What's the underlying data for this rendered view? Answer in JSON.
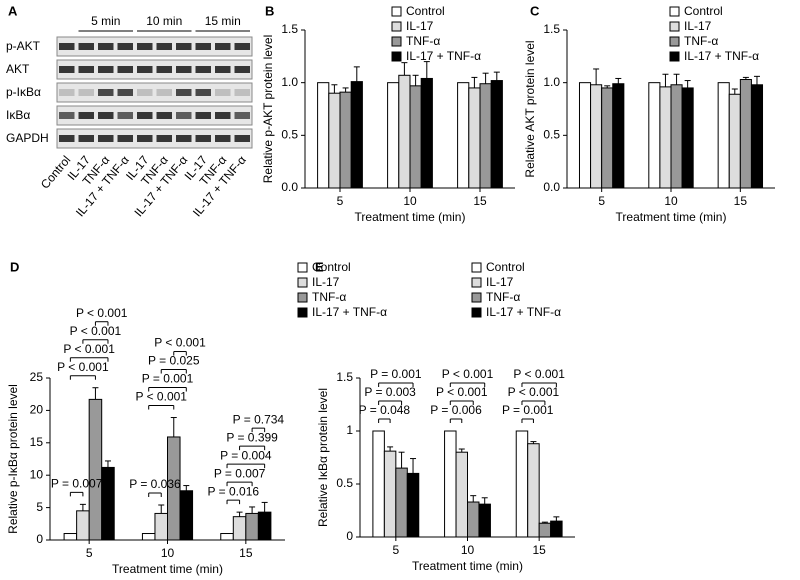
{
  "chart_data": [
    {
      "type": "blot",
      "label": "A",
      "times": [
        "5 min",
        "10 min",
        "15 min"
      ],
      "rows": [
        "p-AKT",
        "AKT",
        "p-IκBα",
        "IκBα",
        "GAPDH"
      ],
      "lanes": [
        "Control",
        "IL-17",
        "TNF-α",
        "IL-17 + TNF-α",
        "IL-17",
        "TNF-α",
        "IL-17 + TNF-α",
        "IL-17",
        "TNF-α",
        "IL-17 + TNF-α"
      ]
    },
    {
      "type": "bar",
      "label": "B",
      "y_label": "Relative p-AKT protein level",
      "x_label": "Treatment time (min)",
      "categories": [
        "5",
        "10",
        "15"
      ],
      "ylim": [
        0,
        1.5
      ],
      "yticks": [
        {
          "value": 0,
          "label": "0.0"
        },
        0.5,
        {
          "value": 1,
          "label": "1.0"
        },
        1.5
      ],
      "series": [
        {
          "name": "Control",
          "color": "#ffffff",
          "values": [
            1.0,
            1.0,
            1.0
          ]
        },
        {
          "name": "IL-17",
          "color": "#dddddd",
          "values": [
            0.9,
            1.07,
            0.95
          ],
          "errors": [
            0.08,
            0.12,
            0.1
          ]
        },
        {
          "name": "TNF-α",
          "color": "#999999",
          "values": [
            0.91,
            0.97,
            0.99
          ],
          "errors": [
            0.04,
            0.1,
            0.1
          ]
        },
        {
          "name": "IL-17 + TNF-α",
          "color": "#000000",
          "values": [
            1.01,
            1.04,
            1.02
          ],
          "errors": [
            0.14,
            0.16,
            0.08
          ]
        }
      ]
    },
    {
      "type": "bar",
      "label": "C",
      "y_label": "Relative AKT protein level",
      "x_label": "Treatment time (min)",
      "categories": [
        "5",
        "10",
        "15"
      ],
      "ylim": [
        0,
        1.5
      ],
      "yticks": [
        {
          "value": 0,
          "label": "0.0"
        },
        0.5,
        {
          "value": 1,
          "label": "1.0"
        },
        1.5
      ],
      "series": [
        {
          "name": "Control",
          "color": "#ffffff",
          "values": [
            1.0,
            1.0,
            1.0
          ]
        },
        {
          "name": "IL-17",
          "color": "#dddddd",
          "values": [
            0.98,
            0.96,
            0.89
          ],
          "errors": [
            0.15,
            0.12,
            0.05
          ]
        },
        {
          "name": "TNF-α",
          "color": "#999999",
          "values": [
            0.95,
            0.98,
            1.03
          ],
          "errors": [
            0.02,
            0.1,
            0.02
          ]
        },
        {
          "name": "IL-17 + TNF-α",
          "color": "#000000",
          "values": [
            0.99,
            0.95,
            0.98
          ],
          "errors": [
            0.05,
            0.07,
            0.08
          ]
        }
      ]
    },
    {
      "type": "bar",
      "label": "D",
      "y_label": "Relative p-IκBα protein level",
      "x_label": "Treatment time (min)",
      "categories": [
        "5",
        "10",
        "15"
      ],
      "ylim": [
        0,
        25
      ],
      "yticks": [
        0,
        5,
        10,
        15,
        20,
        25
      ],
      "series": [
        {
          "name": "Control",
          "color": "#ffffff",
          "values": [
            1,
            1,
            1
          ]
        },
        {
          "name": "IL-17",
          "color": "#dddddd",
          "values": [
            4.5,
            4.1,
            3.6
          ],
          "errors": [
            1,
            1.3,
            0.7
          ]
        },
        {
          "name": "TNF-α",
          "color": "#999999",
          "values": [
            21.7,
            15.9,
            4.1
          ],
          "errors": [
            1.8,
            3,
            1
          ]
        },
        {
          "name": "IL-17 + TNF-α",
          "color": "#000000",
          "values": [
            11.2,
            7.6,
            4.3
          ],
          "errors": [
            1,
            0.8,
            1.5
          ]
        }
      ],
      "annotations": [
        [
          "P = 0.007",
          "P < 0.001",
          "P < 0.001",
          "P < 0.001",
          "P < 0.001"
        ],
        [
          "P = 0.036",
          "P < 0.001",
          "P = 0.001",
          "P = 0.025",
          "P < 0.001"
        ],
        [
          "P = 0.016",
          "P = 0.007",
          "P = 0.004",
          "P = 0.399",
          "P = 0.734"
        ]
      ]
    },
    {
      "type": "bar",
      "label": "E",
      "y_label": "Relative IκBα protein level",
      "x_label": "Treatment time (min)",
      "categories": [
        "5",
        "10",
        "15"
      ],
      "ylim": [
        0,
        1.5
      ],
      "yticks": [
        0,
        0.5,
        1,
        1.5
      ],
      "series": [
        {
          "name": "Control",
          "color": "#ffffff",
          "values": [
            1,
            1,
            1
          ]
        },
        {
          "name": "IL-17",
          "color": "#dddddd",
          "values": [
            0.81,
            0.8,
            0.88
          ],
          "errors": [
            0.04,
            0.03,
            0.02
          ]
        },
        {
          "name": "TNF-α",
          "color": "#999999",
          "values": [
            0.65,
            0.33,
            0.13
          ],
          "errors": [
            0.15,
            0.06,
            0.01
          ]
        },
        {
          "name": "IL-17 + TNF-α",
          "color": "#000000",
          "values": [
            0.6,
            0.31,
            0.15
          ],
          "errors": [
            0.14,
            0.06,
            0.04
          ]
        }
      ],
      "annotations": [
        [
          "P = 0.048",
          "P = 0.003",
          "P = 0.001"
        ],
        [
          "P = 0.006",
          "P < 0.001",
          "P < 0.001"
        ],
        [
          "P = 0.001",
          "P < 0.001",
          "P < 0.001"
        ]
      ]
    }
  ]
}
